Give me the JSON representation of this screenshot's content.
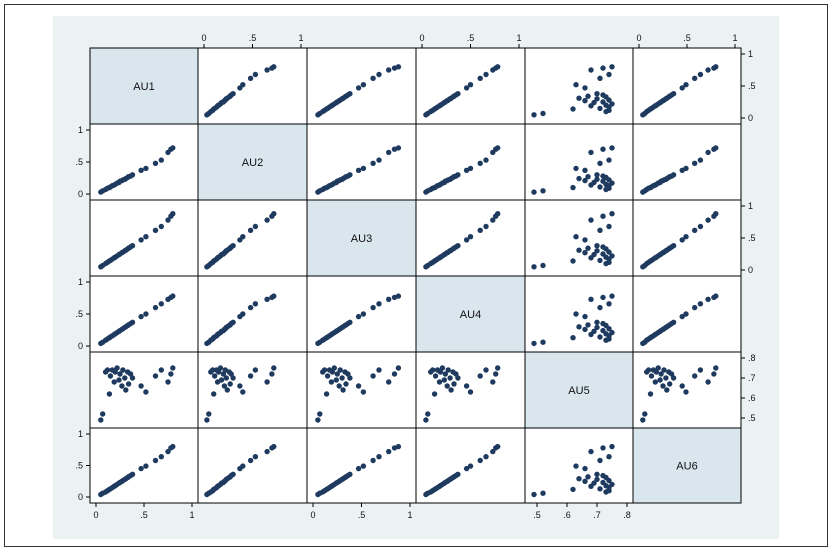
{
  "chart_data": {
    "type": "scatter",
    "matrix": true,
    "title": "",
    "variables": [
      "AU1",
      "AU2",
      "AU3",
      "AU4",
      "AU5",
      "AU6"
    ],
    "ranges": {
      "AU1": [
        0,
        1
      ],
      "AU2": [
        0,
        1
      ],
      "AU3": [
        0,
        1
      ],
      "AU4": [
        0,
        1
      ],
      "AU5": [
        0.48,
        0.8
      ],
      "AU6": [
        0,
        1
      ]
    },
    "ticks": {
      "AU1": [
        {
          "v": 0,
          "label": "0"
        },
        {
          "v": 0.5,
          "label": ".5"
        },
        {
          "v": 1,
          "label": "1"
        }
      ],
      "AU2": [
        {
          "v": 0,
          "label": "0"
        },
        {
          "v": 0.5,
          "label": ".5"
        },
        {
          "v": 1,
          "label": "1"
        }
      ],
      "AU3": [
        {
          "v": 0,
          "label": "0"
        },
        {
          "v": 0.5,
          "label": ".5"
        },
        {
          "v": 1,
          "label": "1"
        }
      ],
      "AU4": [
        {
          "v": 0,
          "label": "0"
        },
        {
          "v": 0.5,
          "label": ".5"
        },
        {
          "v": 1,
          "label": "1"
        }
      ],
      "AU5": [
        {
          "v": 0.5,
          "label": ".5"
        },
        {
          "v": 0.6,
          "label": ".6"
        },
        {
          "v": 0.7,
          "label": ".7"
        },
        {
          "v": 0.8,
          "label": ".8"
        }
      ],
      "AU6": [
        {
          "v": 0,
          "label": "0"
        },
        {
          "v": 0.5,
          "label": ".5"
        },
        {
          "v": 1,
          "label": "1"
        }
      ]
    },
    "observations": [
      {
        "AU1": 0.05,
        "AU2": 0.03,
        "AU3": 0.05,
        "AU4": 0.04,
        "AU5": 0.49,
        "AU6": 0.04
      },
      {
        "AU1": 0.07,
        "AU2": 0.05,
        "AU3": 0.07,
        "AU4": 0.06,
        "AU5": 0.52,
        "AU6": 0.06
      },
      {
        "AU1": 0.1,
        "AU2": 0.07,
        "AU3": 0.1,
        "AU4": 0.09,
        "AU5": 0.73,
        "AU6": 0.08
      },
      {
        "AU1": 0.12,
        "AU2": 0.09,
        "AU3": 0.12,
        "AU4": 0.11,
        "AU5": 0.74,
        "AU6": 0.1
      },
      {
        "AU1": 0.14,
        "AU2": 0.1,
        "AU3": 0.14,
        "AU4": 0.13,
        "AU5": 0.62,
        "AU6": 0.12
      },
      {
        "AU1": 0.15,
        "AU2": 0.11,
        "AU3": 0.15,
        "AU4": 0.14,
        "AU5": 0.71,
        "AU6": 0.13
      },
      {
        "AU1": 0.17,
        "AU2": 0.13,
        "AU3": 0.17,
        "AU4": 0.16,
        "AU5": 0.74,
        "AU6": 0.15
      },
      {
        "AU1": 0.19,
        "AU2": 0.14,
        "AU3": 0.19,
        "AU4": 0.18,
        "AU5": 0.68,
        "AU6": 0.17
      },
      {
        "AU1": 0.2,
        "AU2": 0.15,
        "AU3": 0.2,
        "AU4": 0.19,
        "AU5": 0.73,
        "AU6": 0.18
      },
      {
        "AU1": 0.22,
        "AU2": 0.17,
        "AU3": 0.22,
        "AU4": 0.21,
        "AU5": 0.75,
        "AU6": 0.2
      },
      {
        "AU1": 0.24,
        "AU2": 0.18,
        "AU3": 0.24,
        "AU4": 0.23,
        "AU5": 0.69,
        "AU6": 0.22
      },
      {
        "AU1": 0.25,
        "AU2": 0.2,
        "AU3": 0.25,
        "AU4": 0.24,
        "AU5": 0.72,
        "AU6": 0.23
      },
      {
        "AU1": 0.27,
        "AU2": 0.21,
        "AU3": 0.27,
        "AU4": 0.26,
        "AU5": 0.66,
        "AU6": 0.25
      },
      {
        "AU1": 0.28,
        "AU2": 0.22,
        "AU3": 0.28,
        "AU4": 0.27,
        "AU5": 0.74,
        "AU6": 0.26
      },
      {
        "AU1": 0.3,
        "AU2": 0.23,
        "AU3": 0.3,
        "AU4": 0.29,
        "AU5": 0.7,
        "AU6": 0.28
      },
      {
        "AU1": 0.31,
        "AU2": 0.24,
        "AU3": 0.31,
        "AU4": 0.3,
        "AU5": 0.64,
        "AU6": 0.29
      },
      {
        "AU1": 0.33,
        "AU2": 0.26,
        "AU3": 0.33,
        "AU4": 0.32,
        "AU5": 0.73,
        "AU6": 0.31
      },
      {
        "AU1": 0.34,
        "AU2": 0.27,
        "AU3": 0.34,
        "AU4": 0.33,
        "AU5": 0.67,
        "AU6": 0.32
      },
      {
        "AU1": 0.36,
        "AU2": 0.28,
        "AU3": 0.36,
        "AU4": 0.35,
        "AU5": 0.72,
        "AU6": 0.34
      },
      {
        "AU1": 0.38,
        "AU2": 0.3,
        "AU3": 0.38,
        "AU4": 0.37,
        "AU5": 0.7,
        "AU6": 0.36
      },
      {
        "AU1": 0.47,
        "AU2": 0.37,
        "AU3": 0.47,
        "AU4": 0.46,
        "AU5": 0.66,
        "AU6": 0.45
      },
      {
        "AU1": 0.52,
        "AU2": 0.4,
        "AU3": 0.52,
        "AU4": 0.5,
        "AU5": 0.63,
        "AU6": 0.49
      },
      {
        "AU1": 0.62,
        "AU2": 0.48,
        "AU3": 0.62,
        "AU4": 0.6,
        "AU5": 0.71,
        "AU6": 0.58
      },
      {
        "AU1": 0.68,
        "AU2": 0.53,
        "AU3": 0.68,
        "AU4": 0.66,
        "AU5": 0.74,
        "AU6": 0.64
      },
      {
        "AU1": 0.75,
        "AU2": 0.65,
        "AU3": 0.78,
        "AU4": 0.73,
        "AU5": 0.68,
        "AU6": 0.72
      },
      {
        "AU1": 0.78,
        "AU2": 0.7,
        "AU3": 0.84,
        "AU4": 0.76,
        "AU5": 0.72,
        "AU6": 0.78
      },
      {
        "AU1": 0.8,
        "AU2": 0.72,
        "AU3": 0.88,
        "AU4": 0.78,
        "AU5": 0.75,
        "AU6": 0.8
      }
    ]
  }
}
